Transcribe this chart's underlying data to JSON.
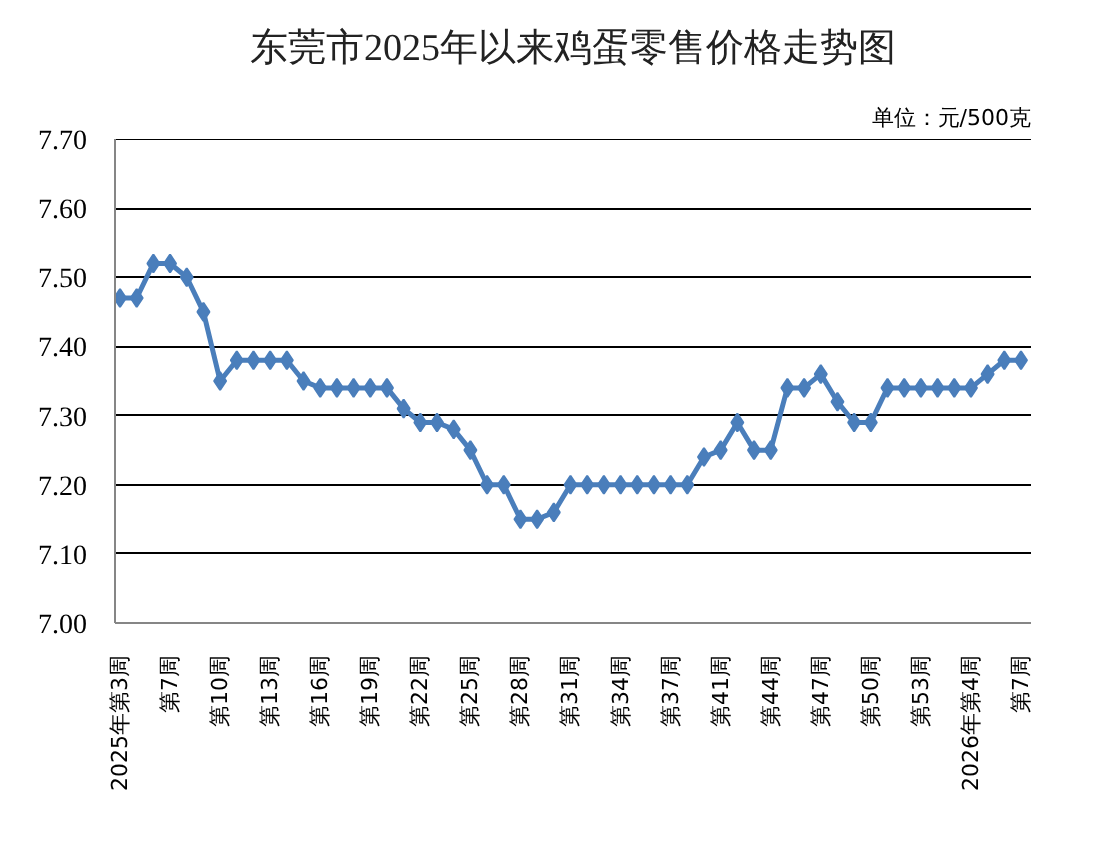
{
  "chart_data": {
    "type": "line",
    "title": "东莞市2025年以来鸡蛋零售价格走势图",
    "annotations": [
      "单位：元/500克"
    ],
    "categories": [
      "2025年第3周",
      null,
      null,
      "第7周",
      null,
      null,
      "第10周",
      null,
      null,
      "第13周",
      null,
      null,
      "第16周",
      null,
      null,
      "第19周",
      null,
      null,
      "第22周",
      null,
      null,
      "第25周",
      null,
      null,
      "第28周",
      null,
      null,
      "第31周",
      null,
      null,
      "第34周",
      null,
      null,
      "第37周",
      null,
      null,
      "第41周",
      null,
      null,
      "第44周",
      null,
      null,
      "第47周",
      null,
      null,
      "第50周",
      null,
      null,
      "第53周",
      null,
      null,
      "2026年第4周",
      null,
      null,
      "第7周"
    ],
    "values": [
      7.47,
      7.47,
      7.52,
      7.52,
      7.5,
      7.45,
      7.35,
      7.38,
      7.38,
      7.38,
      7.38,
      7.35,
      7.34,
      7.34,
      7.34,
      7.34,
      7.34,
      7.31,
      7.29,
      7.29,
      7.28,
      7.25,
      7.2,
      7.2,
      7.15,
      7.15,
      7.16,
      7.2,
      7.2,
      7.2,
      7.2,
      7.2,
      7.2,
      7.2,
      7.2,
      7.24,
      7.25,
      7.29,
      7.25,
      7.25,
      7.34,
      7.34,
      7.36,
      7.32,
      7.29,
      7.29,
      7.34,
      7.34,
      7.34,
      7.34,
      7.34,
      7.34,
      7.36,
      7.38,
      7.38
    ],
    "color": "#4a7ebb",
    "marker": "diamond",
    "line_style": "solid",
    "ylim": [
      7.0,
      7.7
    ],
    "yticks": [
      {
        "value": 7.0,
        "label": "7.00"
      },
      {
        "value": 7.1,
        "label": "7.10"
      },
      {
        "value": 7.2,
        "label": "7.20"
      },
      {
        "value": 7.3,
        "label": "7.30"
      },
      {
        "value": 7.4,
        "label": "7.40"
      },
      {
        "value": 7.5,
        "label": "7.50"
      },
      {
        "value": 7.6,
        "label": "7.60"
      },
      {
        "value": 7.7,
        "label": "7.70"
      }
    ],
    "grid": "y"
  }
}
